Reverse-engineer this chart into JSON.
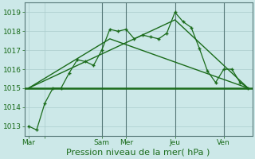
{
  "background_color": "#cce8e8",
  "grid_color_h": "#aacccc",
  "grid_color_v": "#aacccc",
  "vline_color": "#88aaaa",
  "line_color": "#1a6b1a",
  "marker_color": "#1a6b1a",
  "series1_x": [
    0,
    1,
    2,
    3,
    4,
    5,
    6,
    7,
    8,
    9,
    10,
    11,
    12,
    13,
    14,
    15,
    16,
    17,
    18,
    19,
    20,
    21,
    22,
    23,
    24,
    25,
    26,
    27
  ],
  "series1_y": [
    1013.0,
    1012.8,
    1014.2,
    1015.0,
    1015.0,
    1015.8,
    1016.5,
    1016.4,
    1016.2,
    1017.0,
    1018.1,
    1018.0,
    1018.1,
    1017.6,
    1017.8,
    1017.7,
    1017.6,
    1017.9,
    1019.0,
    1018.5,
    1018.2,
    1017.1,
    1015.9,
    1015.3,
    1016.0,
    1016.0,
    1015.3,
    1015.0
  ],
  "line2_x": [
    0,
    10,
    27
  ],
  "line2_y": [
    1015.0,
    1017.6,
    1015.0
  ],
  "line3_x": [
    0,
    18,
    27
  ],
  "line3_y": [
    1015.0,
    1018.6,
    1015.0
  ],
  "hline_y": 1015.0,
  "vline_positions": [
    0,
    9,
    12,
    18,
    24
  ],
  "xtick_positions": [
    0,
    2,
    9,
    12,
    18,
    24
  ],
  "xtick_labels": [
    "Mar",
    "",
    "Sam",
    "Mer",
    "Jeu",
    "Ven"
  ],
  "ylim": [
    1012.5,
    1019.5
  ],
  "xlim": [
    -0.5,
    27.5
  ],
  "yticks": [
    1013,
    1014,
    1015,
    1016,
    1017,
    1018,
    1019
  ],
  "xlabel": "Pression niveau de la mer( hPa )",
  "xlabel_fontsize": 8,
  "plot_bg": "#cce8e8",
  "fig_bg": "#cce8e8"
}
